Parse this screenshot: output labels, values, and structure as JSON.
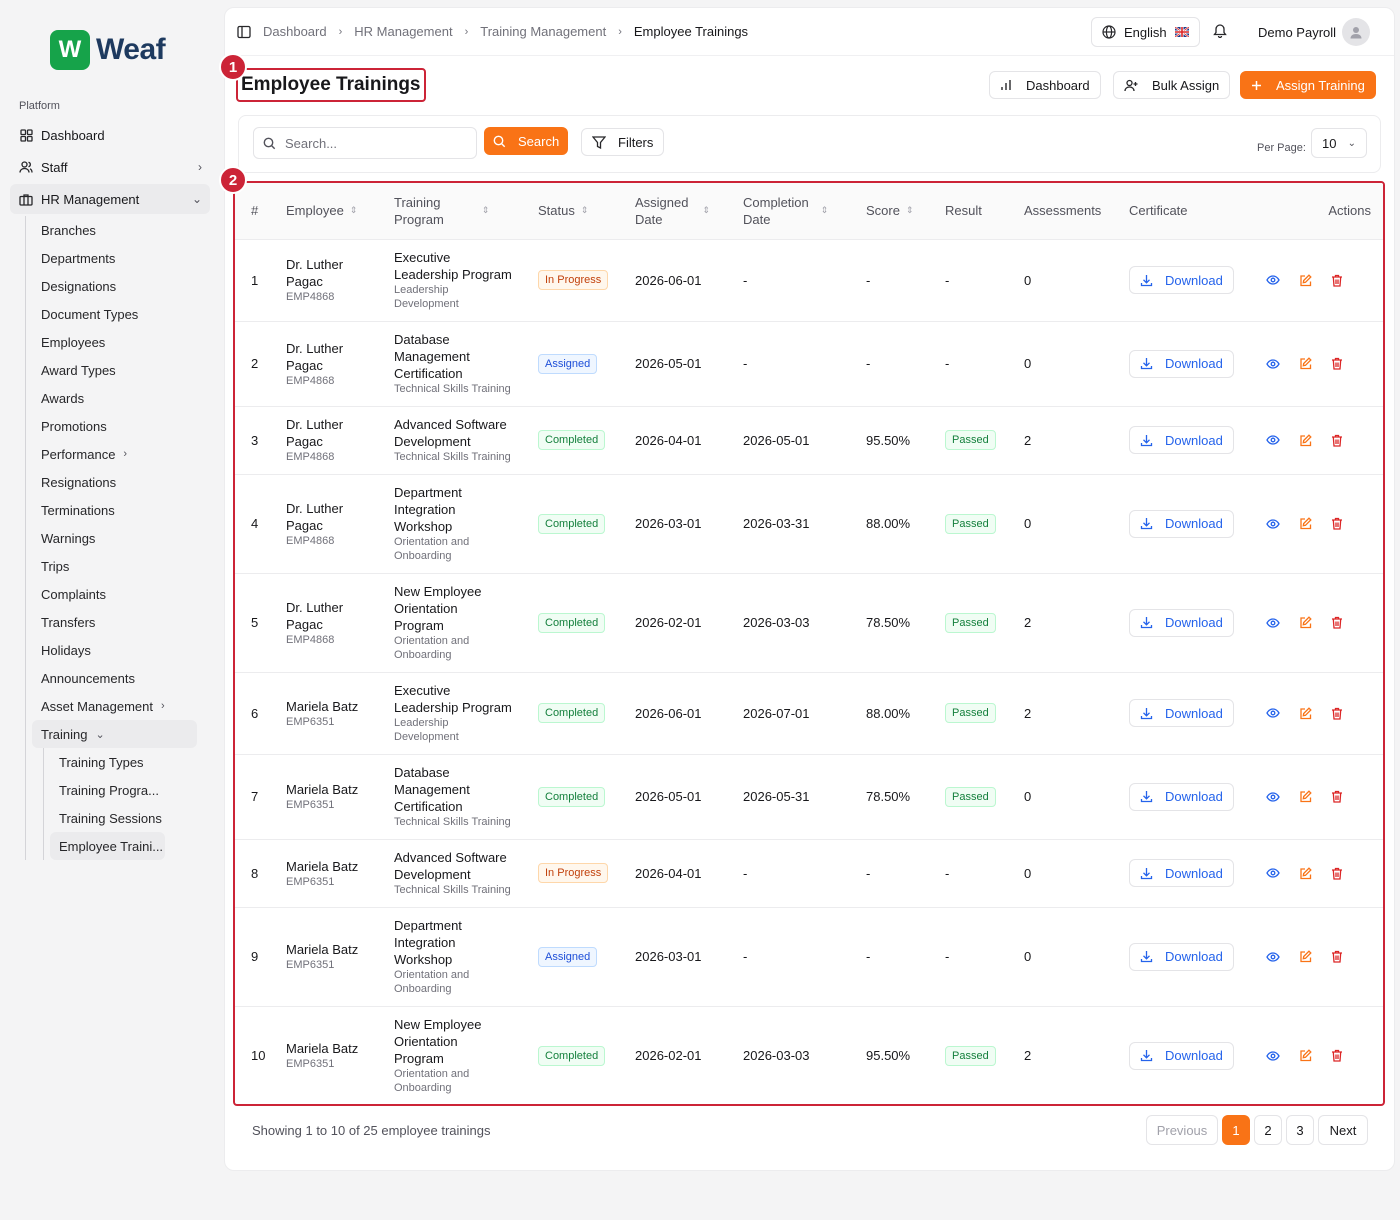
{
  "app": {
    "logo_letter": "W",
    "logo_text": "Weaf",
    "brand_color": "#16a34a",
    "accent_color": "#f97316",
    "marker_color": "#cc2437"
  },
  "sidebar": {
    "section_label": "Platform",
    "items": [
      {
        "label": "Dashboard",
        "icon": "grid-icon"
      },
      {
        "label": "Staff",
        "icon": "users-icon"
      },
      {
        "label": "HR Management",
        "icon": "briefcase-icon"
      }
    ],
    "hr_sub": [
      "Branches",
      "Departments",
      "Designations",
      "Document Types",
      "Employees",
      "Award Types",
      "Awards",
      "Promotions",
      "Performance",
      "Resignations",
      "Terminations",
      "Warnings",
      "Trips",
      "Complaints",
      "Transfers",
      "Holidays",
      "Announcements",
      "Asset Management",
      "Training"
    ],
    "training_sub": [
      "Training Types",
      "Training Progra...",
      "Training Sessions",
      "Employee Traini..."
    ]
  },
  "topbar": {
    "breadcrumbs": [
      "Dashboard",
      "HR Management",
      "Training Management",
      "Employee Trainings"
    ],
    "language": "English",
    "user_name": "Demo Payroll"
  },
  "page": {
    "title": "Employee Trainings",
    "marker_1": "1",
    "marker_2": "2",
    "buttons": {
      "dashboard": "Dashboard",
      "bulk_assign": "Bulk Assign",
      "assign_training": "Assign Training"
    }
  },
  "filters": {
    "search_placeholder": "Search...",
    "search_button": "Search",
    "filters_button": "Filters",
    "per_page_label": "Per Page:",
    "per_page_value": "10"
  },
  "table": {
    "headers": {
      "num": "#",
      "employee": "Employee",
      "program_1": "Training",
      "program_2": "Program",
      "status": "Status",
      "assigned_1": "Assigned",
      "assigned_2": "Date",
      "completion_1": "Completion",
      "completion_2": "Date",
      "score": "Score",
      "result": "Result",
      "assessments": "Assessments",
      "certificate": "Certificate",
      "actions": "Actions"
    },
    "download_label": "Download",
    "rows": [
      {
        "num": "1",
        "emp_lines": [
          "Dr. Luther",
          "Pagac"
        ],
        "emp_id": "EMP4868",
        "prog_lines": [
          "Executive",
          "Leadership Program"
        ],
        "cat_lines": [
          "Leadership",
          "Development"
        ],
        "status": "In Progress",
        "status_type": "inprogress",
        "assigned": "2026-06-01",
        "completion": "-",
        "score": "-",
        "result": "-",
        "result_type": "",
        "assessments": "0"
      },
      {
        "num": "2",
        "emp_lines": [
          "Dr. Luther",
          "Pagac"
        ],
        "emp_id": "EMP4868",
        "prog_lines": [
          "Database",
          "Management",
          "Certification"
        ],
        "cat_lines": [
          "Technical Skills Training"
        ],
        "status": "Assigned",
        "status_type": "assigned",
        "assigned": "2026-05-01",
        "completion": "-",
        "score": "-",
        "result": "-",
        "result_type": "",
        "assessments": "0"
      },
      {
        "num": "3",
        "emp_lines": [
          "Dr. Luther",
          "Pagac"
        ],
        "emp_id": "EMP4868",
        "prog_lines": [
          "Advanced Software",
          "Development"
        ],
        "cat_lines": [
          "Technical Skills Training"
        ],
        "status": "Completed",
        "status_type": "completed",
        "assigned": "2026-04-01",
        "completion": "2026-05-01",
        "score": "95.50%",
        "result": "Passed",
        "result_type": "passed",
        "assessments": "2"
      },
      {
        "num": "4",
        "emp_lines": [
          "Dr. Luther",
          "Pagac"
        ],
        "emp_id": "EMP4868",
        "prog_lines": [
          "Department",
          "Integration",
          "Workshop"
        ],
        "cat_lines": [
          "Orientation and",
          "Onboarding"
        ],
        "status": "Completed",
        "status_type": "completed",
        "assigned": "2026-03-01",
        "completion": "2026-03-31",
        "score": "88.00%",
        "result": "Passed",
        "result_type": "passed",
        "assessments": "0"
      },
      {
        "num": "5",
        "emp_lines": [
          "Dr. Luther",
          "Pagac"
        ],
        "emp_id": "EMP4868",
        "prog_lines": [
          "New Employee",
          "Orientation",
          "Program"
        ],
        "cat_lines": [
          "Orientation and",
          "Onboarding"
        ],
        "status": "Completed",
        "status_type": "completed",
        "assigned": "2026-02-01",
        "completion": "2026-03-03",
        "score": "78.50%",
        "result": "Passed",
        "result_type": "passed",
        "assessments": "2"
      },
      {
        "num": "6",
        "emp_lines": [
          "Mariela Batz"
        ],
        "emp_id": "EMP6351",
        "prog_lines": [
          "Executive",
          "Leadership Program"
        ],
        "cat_lines": [
          "Leadership",
          "Development"
        ],
        "status": "Completed",
        "status_type": "completed",
        "assigned": "2026-06-01",
        "completion": "2026-07-01",
        "score": "88.00%",
        "result": "Passed",
        "result_type": "passed",
        "assessments": "2"
      },
      {
        "num": "7",
        "emp_lines": [
          "Mariela Batz"
        ],
        "emp_id": "EMP6351",
        "prog_lines": [
          "Database",
          "Management",
          "Certification"
        ],
        "cat_lines": [
          "Technical Skills Training"
        ],
        "status": "Completed",
        "status_type": "completed",
        "assigned": "2026-05-01",
        "completion": "2026-05-31",
        "score": "78.50%",
        "result": "Passed",
        "result_type": "passed",
        "assessments": "0"
      },
      {
        "num": "8",
        "emp_lines": [
          "Mariela Batz"
        ],
        "emp_id": "EMP6351",
        "prog_lines": [
          "Advanced Software",
          "Development"
        ],
        "cat_lines": [
          "Technical Skills Training"
        ],
        "status": "In Progress",
        "status_type": "inprogress",
        "assigned": "2026-04-01",
        "completion": "-",
        "score": "-",
        "result": "-",
        "result_type": "",
        "assessments": "0"
      },
      {
        "num": "9",
        "emp_lines": [
          "Mariela Batz"
        ],
        "emp_id": "EMP6351",
        "prog_lines": [
          "Department",
          "Integration",
          "Workshop"
        ],
        "cat_lines": [
          "Orientation and",
          "Onboarding"
        ],
        "status": "Assigned",
        "status_type": "assigned",
        "assigned": "2026-03-01",
        "completion": "-",
        "score": "-",
        "result": "-",
        "result_type": "",
        "assessments": "0"
      },
      {
        "num": "10",
        "emp_lines": [
          "Mariela Batz"
        ],
        "emp_id": "EMP6351",
        "prog_lines": [
          "New Employee",
          "Orientation",
          "Program"
        ],
        "cat_lines": [
          "Orientation and",
          "Onboarding"
        ],
        "status": "Completed",
        "status_type": "completed",
        "assigned": "2026-02-01",
        "completion": "2026-03-03",
        "score": "95.50%",
        "result": "Passed",
        "result_type": "passed",
        "assessments": "2"
      }
    ]
  },
  "pagination": {
    "summary": "Showing 1 to 10 of 25 employee trainings",
    "previous": "Previous",
    "pages": [
      "1",
      "2",
      "3"
    ],
    "current": "1",
    "next": "Next"
  }
}
